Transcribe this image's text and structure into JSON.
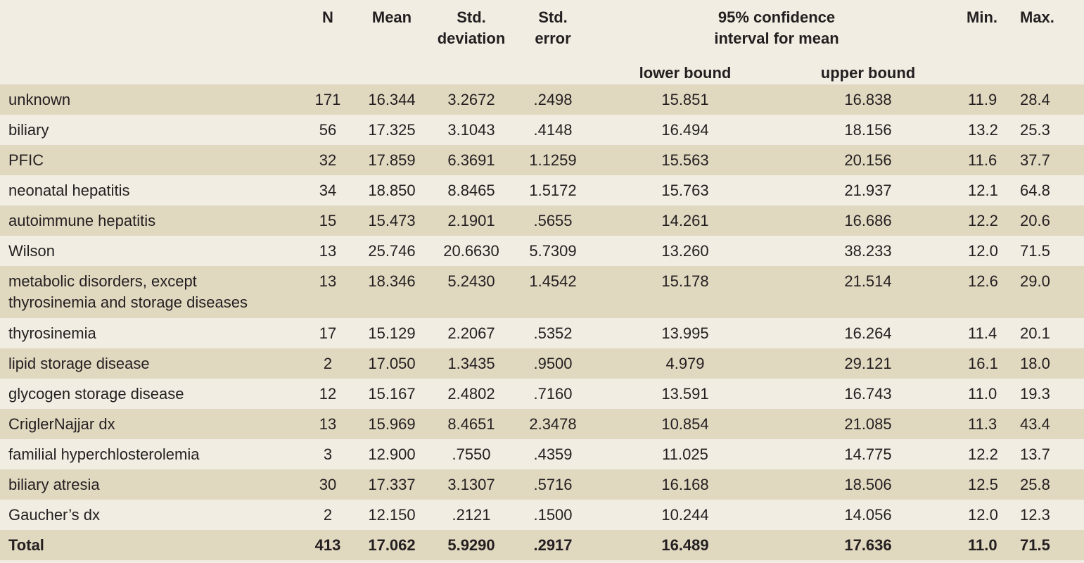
{
  "header": {
    "n": "N",
    "mean": "Mean",
    "std_dev": "Std. deviation",
    "std_dev_line1": "Std.",
    "std_dev_line2": "deviation",
    "std_err_line1": "Std.",
    "std_err_line2": "error",
    "ci_line1": "95% confidence",
    "ci_line2": "interval for mean",
    "lower_bound": "lower bound",
    "upper_bound": "upper bound",
    "min": "Min.",
    "max": "Max."
  },
  "rows": [
    {
      "label": "unknown",
      "n": "171",
      "mean": "16.344",
      "sd": "3.2672",
      "se": ".2498",
      "lb": "15.851",
      "ub": "16.838",
      "min": "11.9",
      "max": "28.4"
    },
    {
      "label": "biliary",
      "n": "56",
      "mean": "17.325",
      "sd": "3.1043",
      "se": ".4148",
      "lb": "16.494",
      "ub": "18.156",
      "min": "13.2",
      "max": "25.3"
    },
    {
      "label": "PFIC",
      "n": "32",
      "mean": "17.859",
      "sd": "6.3691",
      "se": "1.1259",
      "lb": "15.563",
      "ub": "20.156",
      "min": "11.6",
      "max": "37.7"
    },
    {
      "label": "neonatal hepatitis",
      "n": "34",
      "mean": "18.850",
      "sd": "8.8465",
      "se": "1.5172",
      "lb": "15.763",
      "ub": "21.937",
      "min": "12.1",
      "max": "64.8"
    },
    {
      "label": "autoimmune hepatitis",
      "n": "15",
      "mean": "15.473",
      "sd": "2.1901",
      "se": ".5655",
      "lb": "14.261",
      "ub": "16.686",
      "min": "12.2",
      "max": "20.6"
    },
    {
      "label": "Wilson",
      "n": "13",
      "mean": "25.746",
      "sd": "20.6630",
      "se": "5.7309",
      "lb": "13.260",
      "ub": "38.233",
      "min": "12.0",
      "max": "71.5"
    },
    {
      "label_line1": "metabolic disorders, except",
      "label_line2": "thyrosinemia and storage diseases",
      "n": "13",
      "mean": "18.346",
      "sd": "5.2430",
      "se": "1.4542",
      "lb": "15.178",
      "ub": "21.514",
      "min": "12.6",
      "max": "29.0"
    },
    {
      "label": "thyrosinemia",
      "n": "17",
      "mean": "15.129",
      "sd": "2.2067",
      "se": ".5352",
      "lb": "13.995",
      "ub": "16.264",
      "min": "11.4",
      "max": "20.1"
    },
    {
      "label": "lipid storage disease",
      "n": "2",
      "mean": "17.050",
      "sd": "1.3435",
      "se": ".9500",
      "lb": "4.979",
      "ub": "29.121",
      "min": "16.1",
      "max": "18.0"
    },
    {
      "label": "glycogen storage disease",
      "n": "12",
      "mean": "15.167",
      "sd": "2.4802",
      "se": ".7160",
      "lb": "13.591",
      "ub": "16.743",
      "min": "11.0",
      "max": "19.3"
    },
    {
      "label": "CriglerNajjar dx",
      "n": "13",
      "mean": "15.969",
      "sd": "8.4651",
      "se": "2.3478",
      "lb": "10.854",
      "ub": "21.085",
      "min": "11.3",
      "max": "43.4"
    },
    {
      "label": "familial hyperchlosterolemia",
      "n": "3",
      "mean": "12.900",
      "sd": ".7550",
      "se": ".4359",
      "lb": "11.025",
      "ub": "14.775",
      "min": "12.2",
      "max": "13.7"
    },
    {
      "label": "biliary atresia",
      "n": "30",
      "mean": "17.337",
      "sd": "3.1307",
      "se": ".5716",
      "lb": "16.168",
      "ub": "18.506",
      "min": "12.5",
      "max": "25.8"
    },
    {
      "label": "Gaucher’s dx",
      "n": "2",
      "mean": "12.150",
      "sd": ".2121",
      "se": ".1500",
      "lb": "10.244",
      "ub": "14.056",
      "min": "12.0",
      "max": "12.3"
    },
    {
      "label": "Total",
      "n": "413",
      "mean": "17.062",
      "sd": "5.9290",
      "se": ".2917",
      "lb": "16.489",
      "ub": "17.636",
      "min": "11.0",
      "max": "71.5"
    }
  ],
  "colors": {
    "band_dark": "#e1d8c0",
    "band_light": "#f1ede2",
    "text": "#231f20"
  }
}
